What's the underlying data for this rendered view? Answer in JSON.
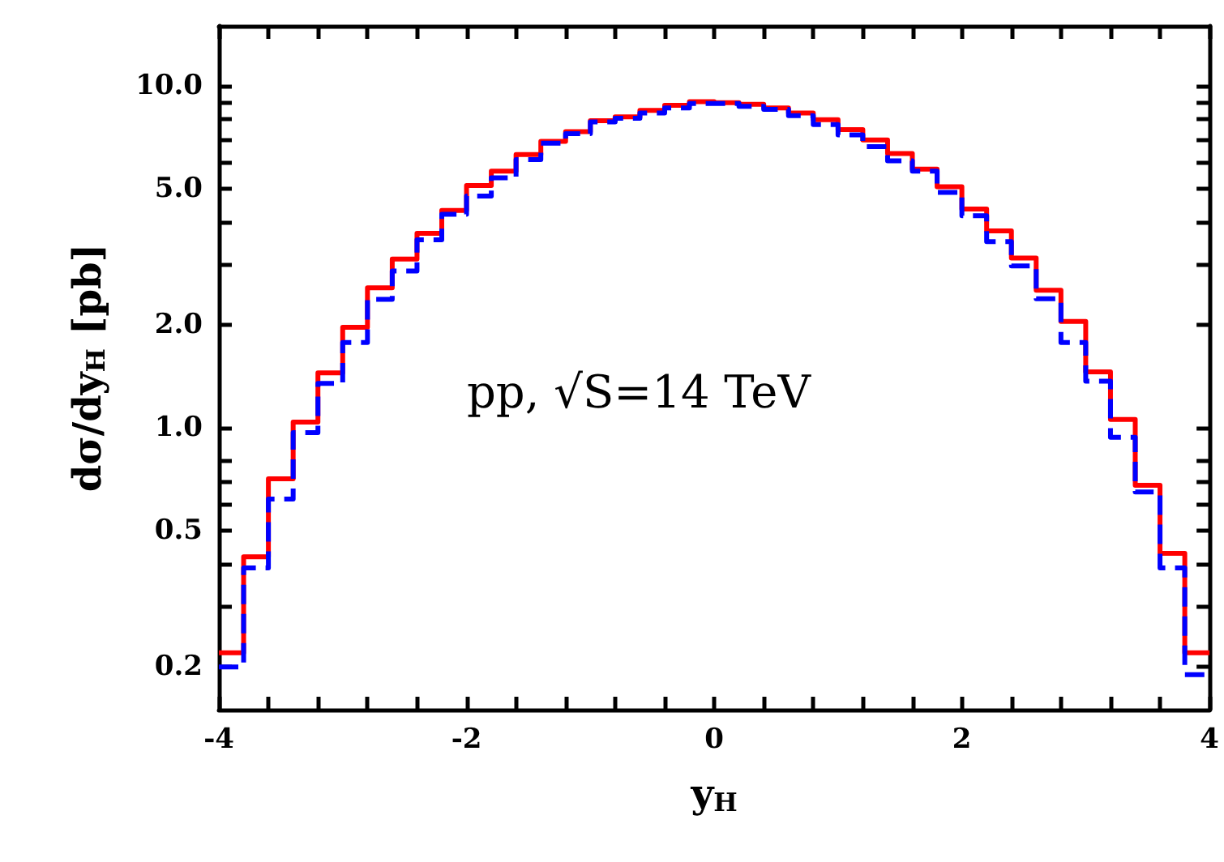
{
  "chart_data": {
    "type": "histogram",
    "xlabel": "y$_{H}$",
    "ylabel": "dσ/dy$_{H}$ [pb]",
    "annotations": [
      "pp, √S=14 TeV"
    ],
    "bins": [
      -4,
      -3.8,
      -3.6,
      -3.4,
      -3.2,
      -3,
      -2.8,
      -2.6,
      -2.4,
      -2.2,
      -2,
      -1.8,
      -1.6,
      -1.4,
      -1.2,
      -1,
      -0.8,
      -0.6,
      -0.4,
      -0.2,
      0,
      0.2,
      0.4,
      0.6,
      0.8,
      1,
      1.2,
      1.4,
      1.6,
      1.8,
      2,
      2.2,
      2.4,
      2.6,
      2.8,
      3,
      3.2,
      3.4,
      3.6,
      3.8,
      4
    ],
    "series": [
      {
        "color": "#ff0000",
        "line_style": "solid",
        "values": [
          0.22,
          0.42,
          0.71,
          1.04,
          1.45,
          1.97,
          2.57,
          3.12,
          3.71,
          4.33,
          5.12,
          5.64,
          6.31,
          6.89,
          7.36,
          7.92,
          8.13,
          8.49,
          8.79,
          9.01,
          8.94,
          8.85,
          8.63,
          8.34,
          7.98,
          7.46,
          6.96,
          6.35,
          5.72,
          5.08,
          4.37,
          3.77,
          3.14,
          2.53,
          2.05,
          1.46,
          1.06,
          0.68,
          0.43,
          0.22
        ]
      },
      {
        "color": "#0000ff",
        "line_style": "dashed",
        "values": [
          0.2,
          0.39,
          0.62,
          0.97,
          1.35,
          1.78,
          2.38,
          2.88,
          3.55,
          4.22,
          4.77,
          5.39,
          6.1,
          6.81,
          7.26,
          7.86,
          8.05,
          8.34,
          8.63,
          8.89,
          8.89,
          8.73,
          8.55,
          8.2,
          7.72,
          7.2,
          6.65,
          6.05,
          5.64,
          4.89,
          4.18,
          3.51,
          2.98,
          2.39,
          1.78,
          1.37,
          0.94,
          0.65,
          0.39,
          0.19
        ]
      }
    ],
    "log": "y",
    "grid": false,
    "xlim": [
      -4,
      4
    ],
    "xticks": [
      -4,
      {
        "value": -3.6,
        "label": null
      },
      {
        "value": -3.2,
        "label": null
      },
      {
        "value": -2.8,
        "label": null
      },
      {
        "value": -2.4,
        "label": null
      },
      -2,
      {
        "value": -1.6,
        "label": null
      },
      {
        "value": -1.2,
        "label": null
      },
      {
        "value": -0.8,
        "label": null
      },
      {
        "value": -0.4,
        "label": null
      },
      0,
      {
        "value": 0.4,
        "label": null
      },
      {
        "value": 0.8,
        "label": null
      },
      {
        "value": 1.2,
        "label": null
      },
      {
        "value": 1.6,
        "label": null
      },
      2,
      {
        "value": 2.4,
        "label": null
      },
      {
        "value": 2.8,
        "label": null
      },
      {
        "value": 3.2,
        "label": null
      },
      {
        "value": 3.6,
        "label": null
      },
      4
    ],
    "ylim": [
      0.15,
      15
    ],
    "yticks": [
      {
        "value": 0.2,
        "label": "0.2"
      },
      {
        "value": 0.3,
        "label": null
      },
      {
        "value": 0.4,
        "label": null
      },
      {
        "value": 0.5,
        "label": "0.5"
      },
      {
        "value": 0.6,
        "label": null
      },
      {
        "value": 0.7,
        "label": null
      },
      {
        "value": 0.8,
        "label": null
      },
      {
        "value": 1,
        "label": "1.0"
      },
      {
        "value": 2,
        "label": "2.0"
      },
      {
        "value": 3,
        "label": null
      },
      {
        "value": 4,
        "label": null
      },
      {
        "value": 5,
        "label": "5.0"
      },
      {
        "value": 6,
        "label": null
      },
      {
        "value": 7,
        "label": null
      },
      {
        "value": 8,
        "label": null
      },
      {
        "value": 9,
        "label": null
      },
      {
        "value": 10,
        "label": "10.0"
      }
    ]
  }
}
